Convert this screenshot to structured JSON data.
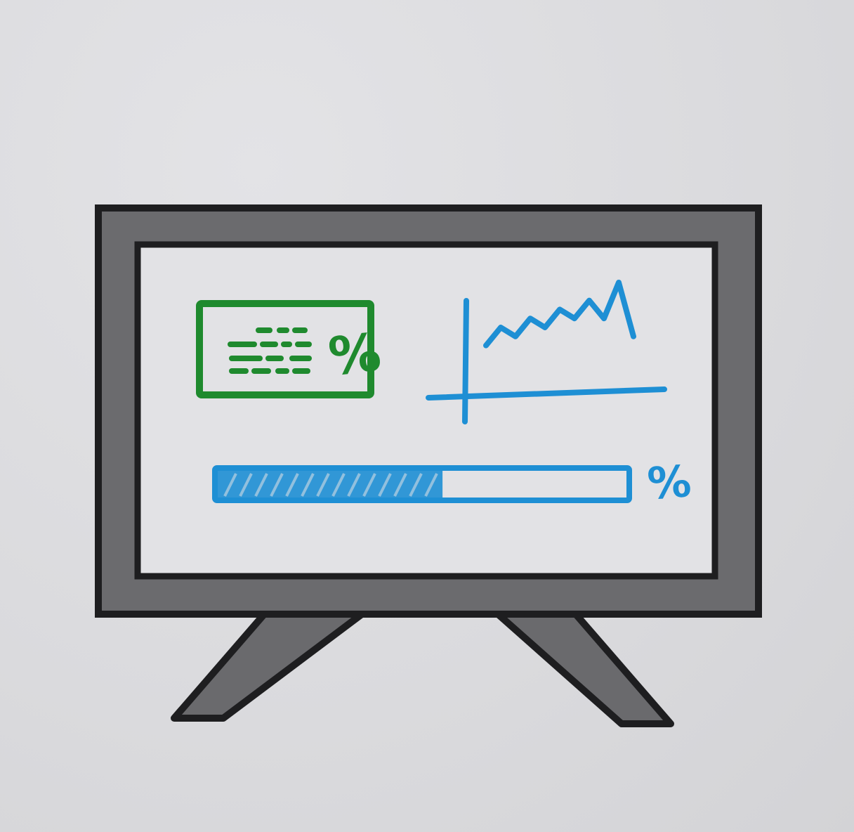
{
  "colors": {
    "frame": "#5a5a5d",
    "outline": "#1e1e20",
    "screen": "#e2e2e5",
    "green": "#1f8a2e",
    "blue": "#1e8fd4"
  },
  "stats_card": {
    "percent_symbol": "%"
  },
  "progress": {
    "percent_symbol": "%",
    "fill_fraction": 0.55
  },
  "sparkline": {
    "values": [
      3,
      5,
      4,
      6,
      5,
      7,
      6,
      8,
      6,
      10,
      4
    ]
  }
}
